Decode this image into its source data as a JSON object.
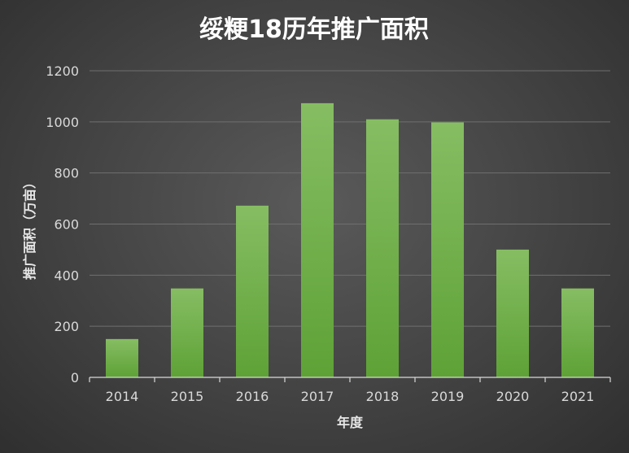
{
  "chart_data": {
    "type": "bar",
    "title": "绥粳18历年推广面积",
    "xlabel": "年度",
    "ylabel": "推广面积（万亩）",
    "categories": [
      "2014",
      "2015",
      "2016",
      "2017",
      "2018",
      "2019",
      "2020",
      "2021"
    ],
    "values": [
      150,
      348,
      672,
      1073,
      1010,
      998,
      500,
      348
    ],
    "ylim": [
      0,
      1200
    ],
    "yticks": [
      0,
      200,
      400,
      600,
      800,
      1000,
      1200
    ],
    "grid": true,
    "legend": "none",
    "colors": {
      "bar_top": "#86bd63",
      "bar_bottom": "#5ea236",
      "background": "#474747"
    }
  }
}
